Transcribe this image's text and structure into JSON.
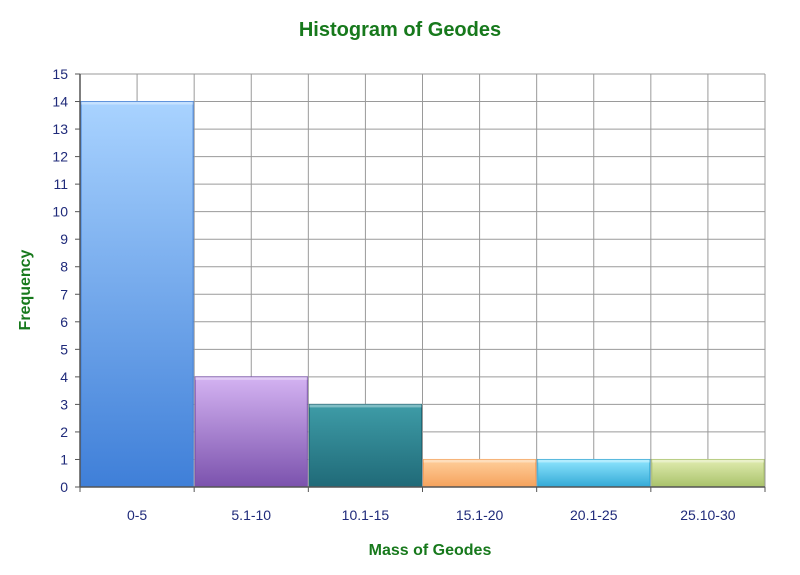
{
  "chart_data": {
    "type": "bar",
    "title": "Histogram of Geodes",
    "xlabel": "Mass of Geodes",
    "ylabel": "Frequency",
    "categories": [
      "0-5",
      "5.1-10",
      "10.1-15",
      "15.1-20",
      "20.1-25",
      "25.10-30"
    ],
    "values": [
      14,
      4,
      3,
      1,
      1,
      1
    ],
    "ylim": [
      0,
      15
    ],
    "yticks": [
      "0",
      "1",
      "2",
      "3",
      "4",
      "5",
      "6",
      "7",
      "8",
      "9",
      "10",
      "11",
      "12",
      "13",
      "14",
      "15"
    ],
    "grid": true,
    "legend": "none",
    "bar_colors": [
      [
        "#a9d3ff",
        "#3f7fd8"
      ],
      [
        "#d4b3f2",
        "#7b52ad"
      ],
      [
        "#3e9ca7",
        "#206a78"
      ],
      [
        "#ffcf9c",
        "#f5a25c"
      ],
      [
        "#8fe6ff",
        "#33a9d6"
      ],
      [
        "#e1ecb0",
        "#a9c26a"
      ]
    ],
    "title_color": "#17791c",
    "tick_color": "#1f2a7a",
    "grid_color": "#9a9a9a"
  }
}
